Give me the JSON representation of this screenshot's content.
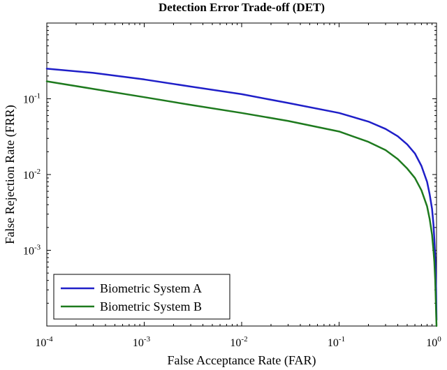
{
  "chart_data": {
    "type": "line",
    "title": "Detection Error Trade-off (DET)",
    "xlabel": "False Acceptance Rate (FAR)",
    "ylabel": "False Rejection Rate (FRR)",
    "xscale": "log",
    "yscale": "log",
    "xlim": [
      0.0001,
      1
    ],
    "ylim": [
      0.0001,
      1
    ],
    "grid": false,
    "legend_position": "bottom-left",
    "x_ticks": [
      {
        "base": "10",
        "exp": "-4",
        "value": 0.0001
      },
      {
        "base": "10",
        "exp": "-3",
        "value": 0.001
      },
      {
        "base": "10",
        "exp": "-2",
        "value": 0.01
      },
      {
        "base": "10",
        "exp": "-1",
        "value": 0.1
      },
      {
        "base": "10",
        "exp": "0",
        "value": 1
      }
    ],
    "y_ticks": [
      {
        "base": "10",
        "exp": "-3",
        "value": 0.001
      },
      {
        "base": "10",
        "exp": "-2",
        "value": 0.01
      },
      {
        "base": "10",
        "exp": "-1",
        "value": 0.1
      }
    ],
    "series": [
      {
        "name": "Biometric System A",
        "color": "#1f1fc8",
        "x": [
          0.0001,
          0.0003,
          0.001,
          0.003,
          0.01,
          0.03,
          0.1,
          0.2,
          0.3,
          0.4,
          0.5,
          0.6,
          0.7,
          0.8,
          0.85,
          0.9,
          0.93,
          0.95,
          0.97,
          0.98,
          0.99,
          1.0
        ],
        "y": [
          0.25,
          0.22,
          0.18,
          0.145,
          0.115,
          0.088,
          0.065,
          0.05,
          0.04,
          0.032,
          0.025,
          0.019,
          0.013,
          0.008,
          0.0055,
          0.0035,
          0.0022,
          0.0014,
          0.0008,
          0.0005,
          0.0003,
          0.00012
        ]
      },
      {
        "name": "Biometric System B",
        "color": "#1e7a1e",
        "x": [
          0.0001,
          0.0003,
          0.001,
          0.003,
          0.01,
          0.03,
          0.1,
          0.2,
          0.3,
          0.4,
          0.5,
          0.6,
          0.7,
          0.8,
          0.85,
          0.9,
          0.93,
          0.95,
          0.97,
          0.98,
          0.99,
          1.0
        ],
        "y": [
          0.17,
          0.135,
          0.105,
          0.083,
          0.065,
          0.051,
          0.037,
          0.027,
          0.021,
          0.016,
          0.012,
          0.009,
          0.0062,
          0.0038,
          0.0026,
          0.0016,
          0.001,
          0.0007,
          0.0004,
          0.00025,
          0.00015,
          0.0001
        ]
      }
    ]
  }
}
